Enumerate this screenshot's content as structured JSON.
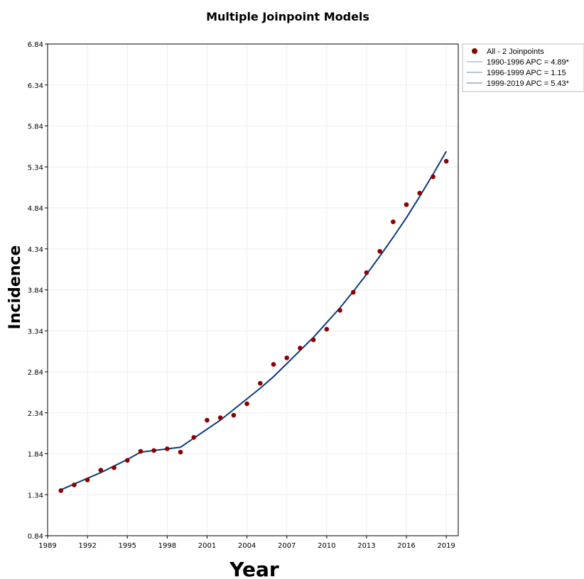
{
  "chart_data": {
    "type": "line",
    "title": "Multiple Joinpoint Models",
    "xlabel": "Year",
    "ylabel": "Incidence",
    "xlim": [
      1989,
      2019.9
    ],
    "ylim": [
      0.84,
      6.84
    ],
    "x_ticks": [
      1989,
      1992,
      1995,
      1998,
      2001,
      2004,
      2007,
      2010,
      2013,
      2016,
      2019
    ],
    "y_ticks": [
      0.84,
      1.34,
      1.84,
      2.34,
      2.84,
      3.34,
      3.84,
      4.34,
      4.84,
      5.34,
      5.84,
      6.34,
      6.84
    ],
    "grid": true,
    "legend_position": "top-right outside",
    "observed": {
      "name": "All - 2 Joinpoints",
      "color": "#8b0000",
      "x": [
        1990,
        1991,
        1992,
        1993,
        1994,
        1995,
        1996,
        1997,
        1998,
        1999,
        2000,
        2001,
        2002,
        2003,
        2004,
        2005,
        2006,
        2007,
        2008,
        2009,
        2010,
        2011,
        2012,
        2013,
        2014,
        2015,
        2016,
        2017,
        2018,
        2019
      ],
      "y": [
        1.39,
        1.46,
        1.52,
        1.64,
        1.67,
        1.76,
        1.87,
        1.88,
        1.9,
        1.86,
        2.04,
        2.25,
        2.28,
        2.31,
        2.45,
        2.7,
        2.93,
        3.01,
        3.13,
        3.23,
        3.36,
        3.59,
        3.81,
        4.05,
        4.31,
        4.67,
        4.88,
        5.02,
        5.22,
        5.41
      ]
    },
    "fitted": {
      "color": "#0d3b7a",
      "x": [
        1990,
        1991,
        1992,
        1993,
        1994,
        1995,
        1996,
        1997,
        1998,
        1999,
        2000,
        2001,
        2002,
        2003,
        2004,
        2005,
        2006,
        2007,
        2008,
        2009,
        2010,
        2011,
        2012,
        2013,
        2014,
        2015,
        2016,
        2017,
        2018,
        2019
      ],
      "y": [
        1.4,
        1.47,
        1.54,
        1.61,
        1.69,
        1.77,
        1.86,
        1.88,
        1.9,
        1.92,
        2.03,
        2.14,
        2.25,
        2.38,
        2.51,
        2.64,
        2.78,
        2.94,
        3.1,
        3.26,
        3.44,
        3.62,
        3.82,
        4.03,
        4.25,
        4.48,
        4.72,
        4.98,
        5.25,
        5.53
      ]
    },
    "segments": [
      {
        "name": "1990-1996 APC  = 4.89*"
      },
      {
        "name": "1996-1999 APC  = 1.15"
      },
      {
        "name": "1999-2019 APC  = 5.43*"
      }
    ]
  }
}
